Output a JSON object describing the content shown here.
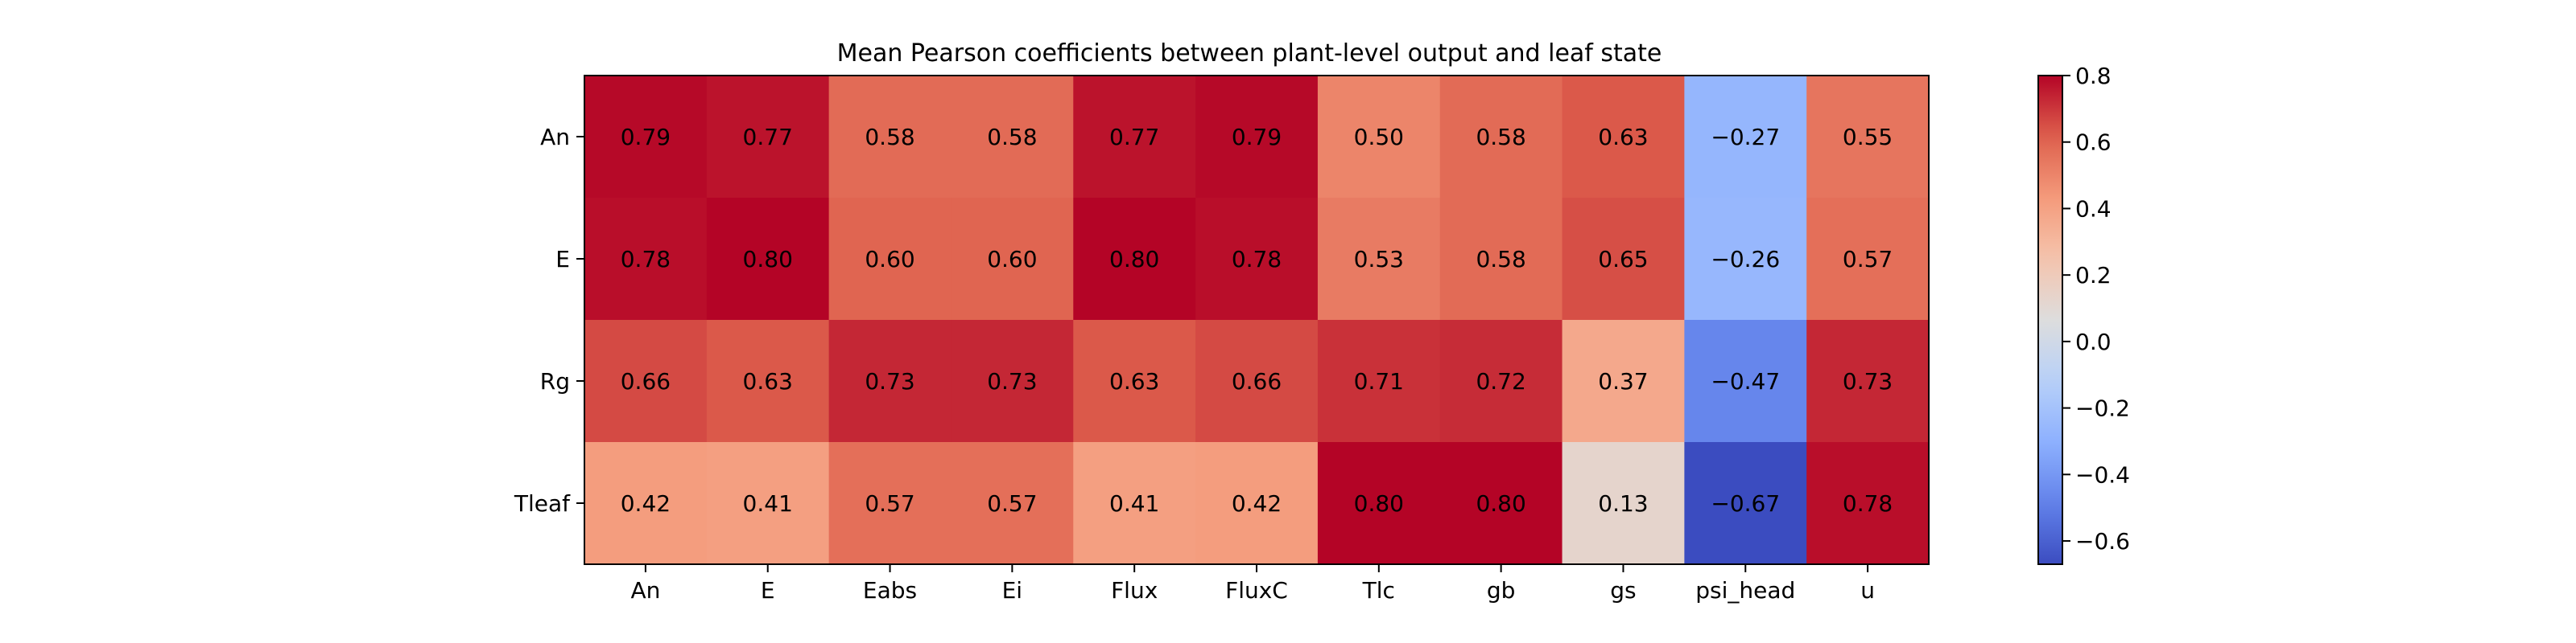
{
  "chart_data": {
    "type": "heatmap",
    "title": "Mean Pearson coefficients between plant-level output and leaf state",
    "xlabel": "",
    "ylabel": "",
    "x_categories": [
      "An",
      "E",
      "Eabs",
      "Ei",
      "Flux",
      "FluxC",
      "Tlc",
      "gb",
      "gs",
      "psi_head",
      "u"
    ],
    "y_categories": [
      "An",
      "E",
      "Rg",
      "Tleaf"
    ],
    "values": [
      [
        0.79,
        0.77,
        0.58,
        0.58,
        0.77,
        0.79,
        0.5,
        0.58,
        0.63,
        -0.27,
        0.55
      ],
      [
        0.78,
        0.8,
        0.6,
        0.6,
        0.8,
        0.78,
        0.53,
        0.58,
        0.65,
        -0.26,
        0.57
      ],
      [
        0.66,
        0.63,
        0.73,
        0.73,
        0.63,
        0.66,
        0.71,
        0.72,
        0.37,
        -0.47,
        0.73
      ],
      [
        0.42,
        0.41,
        0.57,
        0.57,
        0.41,
        0.42,
        0.8,
        0.8,
        0.13,
        -0.67,
        0.78
      ]
    ],
    "colormap": "coolwarm",
    "color_range": [
      -0.67,
      0.8
    ],
    "colorbar_ticks": [
      0.8,
      0.6,
      0.4,
      0.2,
      0.0,
      -0.2,
      -0.4,
      -0.6
    ],
    "colorbar_tick_labels": [
      "0.8",
      "0.6",
      "0.4",
      "0.2",
      "0.0",
      "−0.2",
      "−0.4",
      "−0.6"
    ],
    "colorbar_position": "right",
    "grid": false
  }
}
